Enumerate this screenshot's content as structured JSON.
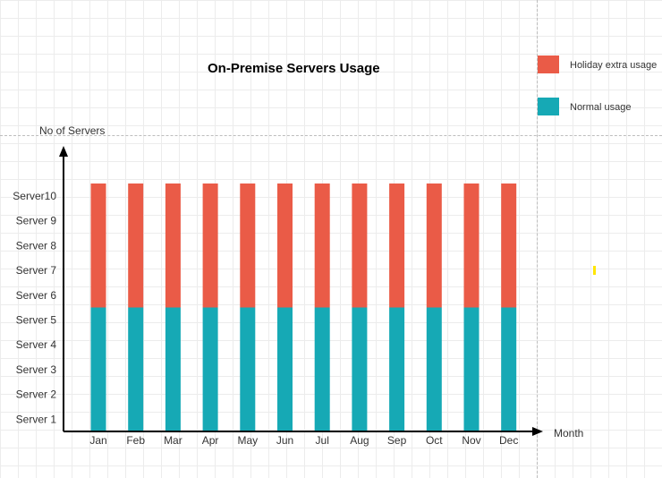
{
  "chart_data": {
    "type": "bar",
    "stacked": true,
    "title": "On-Premise Servers Usage",
    "xlabel": "Month",
    "ylabel": "No of Servers",
    "categories": [
      "Jan",
      "Feb",
      "Mar",
      "Apr",
      "May",
      "Jun",
      "Jul",
      "Aug",
      "Sep",
      "Oct",
      "Nov",
      "Dec"
    ],
    "y_tick_labels": [
      "Server 1",
      "Server 2",
      "Server 3",
      "Server 4",
      "Server 5",
      "Server 6",
      "Server 7",
      "Server 8",
      "Server 9",
      "Server10"
    ],
    "y_tick_values": [
      1,
      2,
      3,
      4,
      5,
      6,
      7,
      8,
      9,
      10
    ],
    "ylim": [
      0,
      10
    ],
    "grid": true,
    "legend_position": "top-right",
    "series": [
      {
        "name": "Normal usage",
        "color": "#16a9b5",
        "values": [
          5,
          5,
          5,
          5,
          5,
          5,
          5,
          5,
          5,
          5,
          5,
          5
        ]
      },
      {
        "name": "Holiday extra usage",
        "color": "#ea5b47",
        "values": [
          5,
          5,
          5,
          5,
          5,
          5,
          5,
          5,
          5,
          5,
          5,
          5
        ]
      }
    ]
  }
}
